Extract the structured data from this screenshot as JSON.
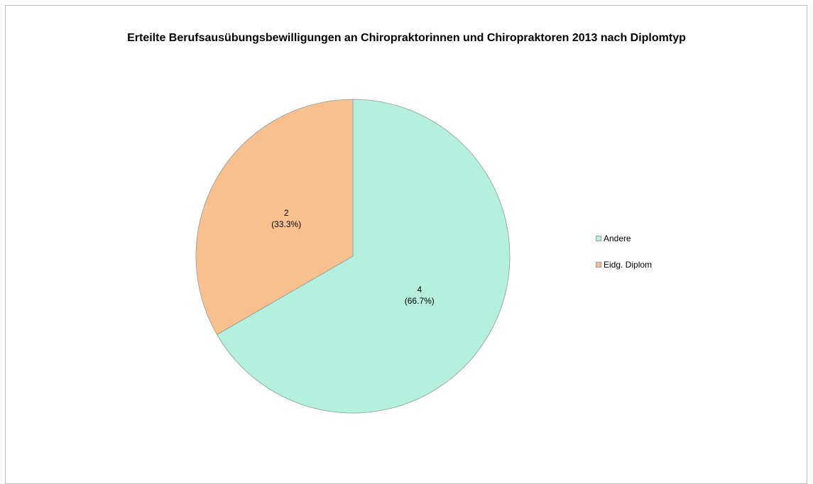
{
  "chart_data": {
    "type": "pie",
    "title": "Erteilte Berufsausübungsbewilligungen an Chiropraktorinnen und Chiropraktoren 2013 nach Diplomtyp",
    "categories": [
      "Andere",
      "Eidg. Diplom"
    ],
    "values": [
      4,
      2
    ],
    "value_labels": [
      "4",
      "2"
    ],
    "percent_labels": [
      "(66.7%)",
      "(33.3%)"
    ],
    "colors": [
      "#b5efdd",
      "#f9c08f"
    ],
    "legend_position": "right",
    "start": "12 o'clock",
    "direction": "clockwise"
  }
}
